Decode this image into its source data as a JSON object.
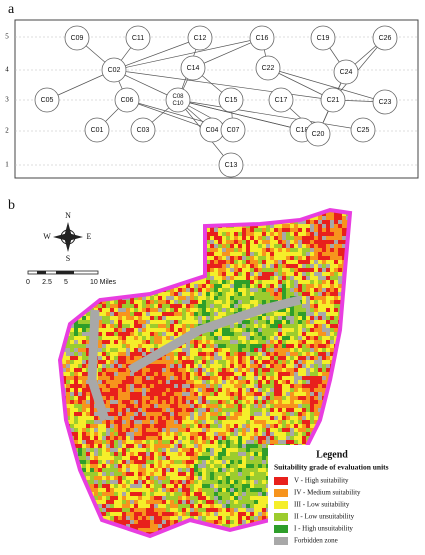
{
  "panel_a": {
    "label": "a",
    "levels": [
      "1",
      "2",
      "3",
      "4",
      "5"
    ],
    "nodes": [
      {
        "labels": [
          "C09"
        ]
      },
      {
        "labels": [
          "C11"
        ]
      },
      {
        "labels": [
          "C12"
        ]
      },
      {
        "labels": [
          "C16"
        ]
      },
      {
        "labels": [
          "C19"
        ]
      },
      {
        "labels": [
          "C26"
        ]
      },
      {
        "labels": [
          "C02"
        ]
      },
      {
        "labels": [
          "C14"
        ]
      },
      {
        "labels": [
          "C22"
        ]
      },
      {
        "labels": [
          "C24"
        ]
      },
      {
        "labels": [
          "C05"
        ]
      },
      {
        "labels": [
          "C06"
        ]
      },
      {
        "labels": [
          "C08",
          "C10"
        ]
      },
      {
        "labels": [
          "C15"
        ]
      },
      {
        "labels": [
          "C17"
        ]
      },
      {
        "labels": [
          "C21"
        ]
      },
      {
        "labels": [
          "C23"
        ]
      },
      {
        "labels": [
          "C01"
        ]
      },
      {
        "labels": [
          "C03"
        ]
      },
      {
        "labels": [
          "C04"
        ]
      },
      {
        "labels": [
          "C07"
        ]
      },
      {
        "labels": [
          "C18"
        ]
      },
      {
        "labels": [
          "C20"
        ]
      },
      {
        "labels": [
          "C25"
        ]
      },
      {
        "labels": [
          "C13"
        ]
      }
    ]
  },
  "panel_b": {
    "label": "b",
    "compass": {
      "n": "N",
      "s": "S",
      "e": "E",
      "w": "W"
    },
    "scale_labels": [
      "0",
      "2.5",
      "5",
      "10 Miles"
    ],
    "legend": {
      "title": "Legend",
      "subtitle": "Suitability grade of evaluation units",
      "items": [
        {
          "label": "V - High suitability",
          "color": "#e8201c"
        },
        {
          "label": "IV - Medium suitability",
          "color": "#f7941d"
        },
        {
          "label": "III - Low suitability",
          "color": "#f5ee2a"
        },
        {
          "label": "II - Low unsuitability",
          "color": "#9ccc2e"
        },
        {
          "label": "I - High unsuitability",
          "color": "#2e9e2a"
        },
        {
          "label": "Forbidden zone",
          "color": "#a8a8a8"
        }
      ]
    }
  }
}
